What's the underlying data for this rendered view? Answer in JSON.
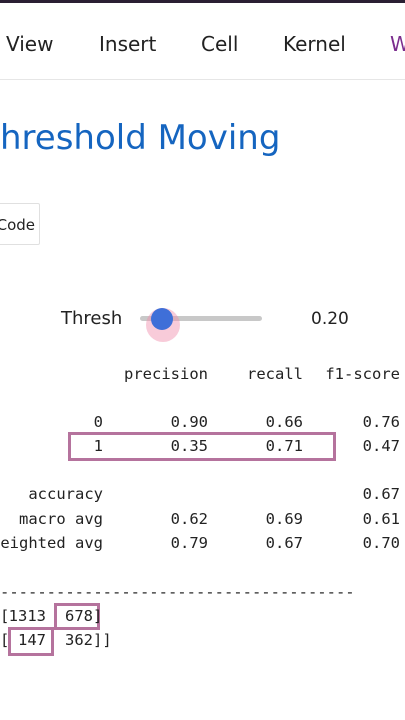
{
  "menu": [
    "View",
    "Insert",
    "Cell",
    "Kernel",
    "W"
  ],
  "heading": "hreshold Moving",
  "button": "Code",
  "slider": {
    "label": "Thresh",
    "value": "0.20"
  },
  "report": {
    "headers": {
      "precision": "precision",
      "recall": "recall",
      "f1": "f1-score"
    },
    "rows": [
      {
        "label": "0",
        "precision": "0.90",
        "recall": "0.66",
        "f1": "0.76"
      },
      {
        "label": "1",
        "precision": "0.35",
        "recall": "0.71",
        "f1": "0.47"
      },
      {
        "label": "accuracy",
        "f1": "0.67"
      },
      {
        "label": "macro avg",
        "precision": "0.62",
        "recall": "0.69",
        "f1": "0.61"
      },
      {
        "label": "eighted avg",
        "precision": "0.79",
        "recall": "0.67",
        "f1": "0.70"
      }
    ]
  },
  "divider": "--------------------------------------",
  "matrix": [
    {
      "open": "[",
      "cells": [
        "1313",
        "678"
      ],
      "close": "]"
    },
    {
      "open": "[",
      "cells": [
        "147",
        "362"
      ],
      "close": "]]"
    }
  ]
}
